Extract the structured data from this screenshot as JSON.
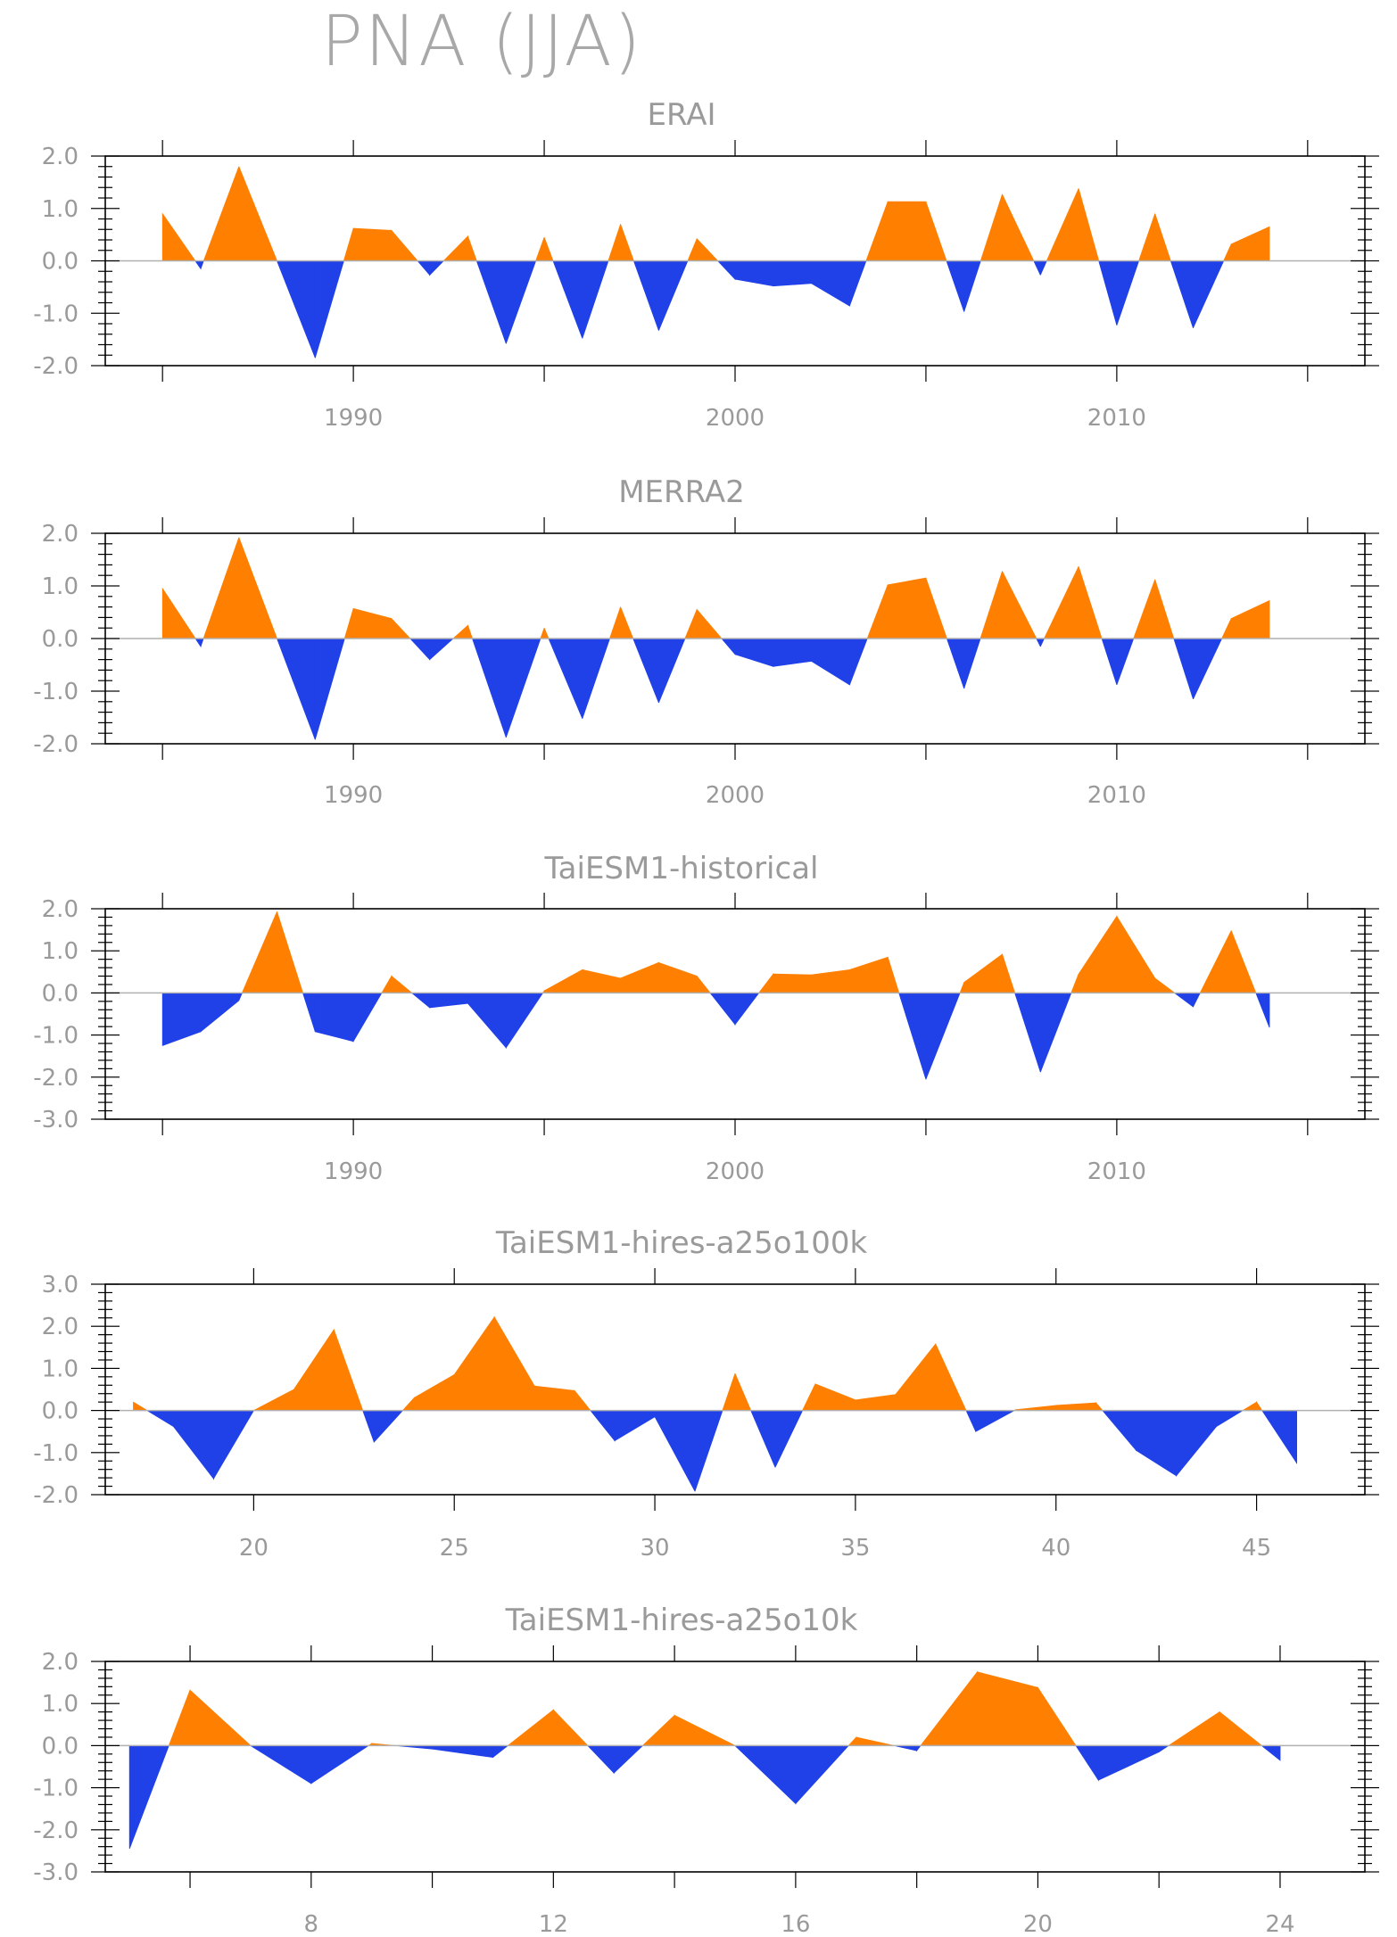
{
  "title": "PNA (JJA)",
  "colors": {
    "positive": "#ff8000",
    "negative": "#2040e8",
    "axis": "#000000",
    "text": "#9a9a9a"
  },
  "chart_data": [
    {
      "type": "area",
      "title": "ERAI",
      "xlim": [
        1983.5,
        2016.5
      ],
      "ylim": [
        -2.0,
        2.0
      ],
      "yticks": [
        -2.0,
        -1.0,
        0.0,
        1.0,
        2.0
      ],
      "ytick_labels": [
        "-2.0",
        "-1.0",
        "0.0",
        "1.0",
        "2.0"
      ],
      "xticks": [
        1990,
        2000,
        2010
      ],
      "xtick_labels": [
        "1990",
        "2000",
        "2010"
      ],
      "x": [
        1985,
        1986,
        1987,
        1988,
        1989,
        1990,
        1991,
        1992,
        1993,
        1994,
        1995,
        1996,
        1997,
        1998,
        1999,
        2000,
        2001,
        2002,
        2003,
        2004,
        2005,
        2006,
        2007,
        2008,
        2009,
        2010,
        2011,
        2012,
        2013,
        2014
      ],
      "values": [
        0.9,
        -0.15,
        1.8,
        0.0,
        -1.85,
        0.62,
        0.58,
        -0.27,
        0.47,
        -1.58,
        0.45,
        -1.48,
        0.7,
        -1.33,
        0.42,
        -0.35,
        -0.48,
        -0.43,
        -0.86,
        1.13,
        1.13,
        -0.97,
        1.27,
        -0.27,
        1.38,
        -1.23,
        0.9,
        -1.28,
        0.32,
        0.65
      ]
    },
    {
      "type": "area",
      "title": "MERRA2",
      "xlim": [
        1983.5,
        2016.5
      ],
      "ylim": [
        -2.0,
        2.0
      ],
      "yticks": [
        -2.0,
        -1.0,
        0.0,
        1.0,
        2.0
      ],
      "ytick_labels": [
        "-2.0",
        "-1.0",
        "0.0",
        "1.0",
        "2.0"
      ],
      "xticks": [
        1990,
        2000,
        2010
      ],
      "xtick_labels": [
        "1990",
        "2000",
        "2010"
      ],
      "x": [
        1985,
        1986,
        1987,
        1988,
        1989,
        1990,
        1991,
        1992,
        1993,
        1994,
        1995,
        1996,
        1997,
        1998,
        1999,
        2000,
        2001,
        2002,
        2003,
        2004,
        2005,
        2006,
        2007,
        2008,
        2009,
        2010,
        2011,
        2012,
        2013,
        2014
      ],
      "values": [
        0.95,
        -0.15,
        1.92,
        0.0,
        -1.92,
        0.57,
        0.38,
        -0.4,
        0.25,
        -1.88,
        0.2,
        -1.52,
        0.6,
        -1.22,
        0.55,
        -0.3,
        -0.53,
        -0.43,
        -0.88,
        1.02,
        1.15,
        -0.95,
        1.28,
        -0.15,
        1.37,
        -0.88,
        1.12,
        -1.15,
        0.38,
        0.72
      ]
    },
    {
      "type": "area",
      "title": "TaiESM1-historical",
      "xlim": [
        1983.5,
        2016.5
      ],
      "ylim": [
        -3.0,
        2.0
      ],
      "yticks": [
        -3.0,
        -2.0,
        -1.0,
        0.0,
        1.0,
        2.0
      ],
      "ytick_labels": [
        "-3.0",
        "-2.0",
        "-1.0",
        "0.0",
        "1.0",
        "2.0"
      ],
      "xticks": [
        1990,
        2000,
        2010
      ],
      "xtick_labels": [
        "1990",
        "2000",
        "2010"
      ],
      "x": [
        1985,
        1986,
        1987,
        1988,
        1989,
        1990,
        1991,
        1992,
        1993,
        1994,
        1995,
        1996,
        1997,
        1998,
        1999,
        2000,
        2001,
        2002,
        2003,
        2004,
        2005,
        2006,
        2007,
        2008,
        2009,
        2010,
        2011,
        2012,
        2013,
        2014
      ],
      "values": [
        -1.25,
        -0.92,
        -0.18,
        1.93,
        -0.92,
        -1.15,
        0.4,
        -0.35,
        -0.25,
        -1.3,
        0.05,
        0.55,
        0.35,
        0.72,
        0.4,
        -0.75,
        0.45,
        0.43,
        0.55,
        0.85,
        -2.05,
        0.25,
        0.92,
        -1.88,
        0.45,
        1.82,
        0.35,
        -0.33,
        1.48,
        -0.82
      ]
    },
    {
      "type": "area",
      "title": "TaiESM1-hires-a25o100k",
      "xlim": [
        16.3,
        47.7
      ],
      "ylim": [
        -2.0,
        3.0
      ],
      "yticks": [
        -2.0,
        -1.0,
        0.0,
        1.0,
        2.0,
        3.0
      ],
      "ytick_labels": [
        "-2.0",
        "-1.0",
        "0.0",
        "1.0",
        "2.0",
        "3.0"
      ],
      "xticks": [
        20,
        25,
        30,
        35,
        40,
        45
      ],
      "xtick_labels": [
        "20",
        "25",
        "30",
        "35",
        "40",
        "45"
      ],
      "x": [
        17,
        18,
        19,
        20,
        21,
        22,
        23,
        24,
        25,
        26,
        27,
        28,
        29,
        30,
        31,
        32,
        33,
        34,
        35,
        36,
        37,
        38,
        39,
        40,
        41,
        42,
        43,
        44,
        45,
        46
      ],
      "values": [
        0.2,
        -0.38,
        -1.62,
        0.0,
        0.5,
        1.92,
        -0.75,
        0.3,
        0.85,
        2.22,
        0.58,
        0.47,
        -0.72,
        -0.15,
        -1.92,
        0.88,
        -1.35,
        0.63,
        0.25,
        0.38,
        1.58,
        -0.5,
        0.02,
        0.12,
        0.18,
        -0.95,
        -1.55,
        -0.38,
        0.2,
        -1.25
      ]
    },
    {
      "type": "area",
      "title": "TaiESM1-hires-a25o10k",
      "xlim": [
        4.6,
        25.4
      ],
      "ylim": [
        -3.0,
        2.0
      ],
      "yticks": [
        -3.0,
        -2.0,
        -1.0,
        0.0,
        1.0,
        2.0
      ],
      "ytick_labels": [
        "-3.0",
        "-2.0",
        "-1.0",
        "0.0",
        "1.0",
        "2.0"
      ],
      "xticks": [
        8,
        12,
        16,
        20,
        24
      ],
      "xtick_labels": [
        "8",
        "12",
        "16",
        "20",
        "24"
      ],
      "x": [
        5,
        6,
        7,
        8,
        9,
        10,
        11,
        12,
        13,
        14,
        15,
        16,
        17,
        18,
        19,
        20,
        21,
        22,
        23,
        24
      ],
      "values": [
        -2.45,
        1.32,
        0.0,
        -0.9,
        0.05,
        -0.08,
        -0.28,
        0.85,
        -0.65,
        0.72,
        0.0,
        -1.38,
        0.2,
        -0.12,
        1.75,
        1.38,
        -0.82,
        -0.15,
        0.8,
        -0.35
      ]
    }
  ]
}
